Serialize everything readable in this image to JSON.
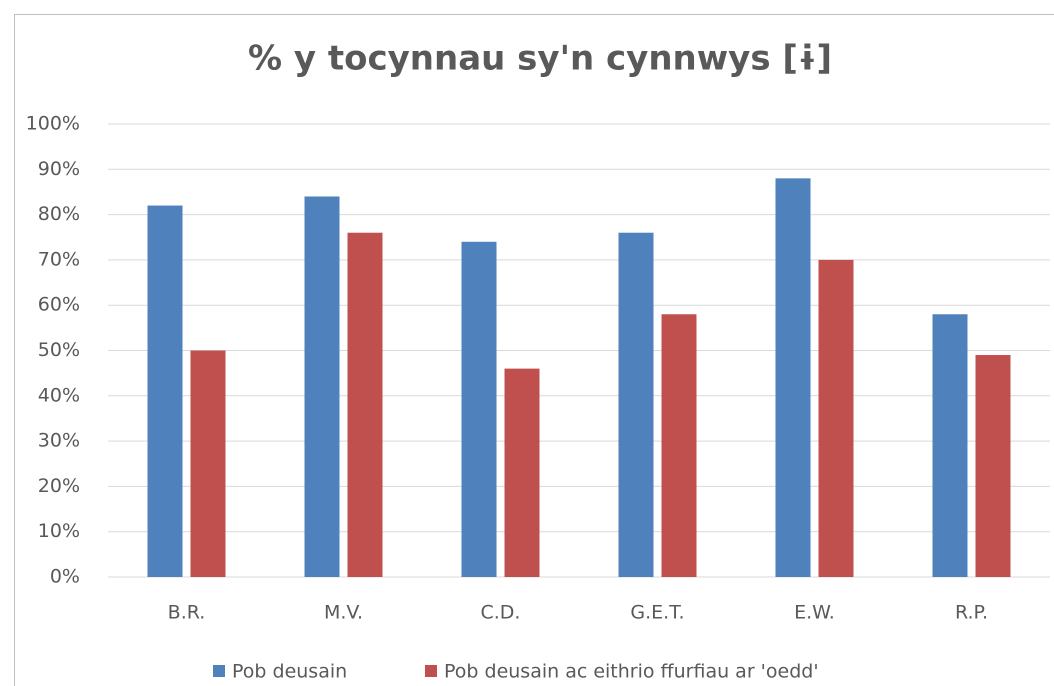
{
  "chart_data": {
    "type": "bar",
    "title": "% y tocynnau sy'n cynnwys [ɨ]",
    "categories": [
      "B.R.",
      "M.V.",
      "C.D.",
      "G.E.T.",
      "E.W.",
      "R.P."
    ],
    "series": [
      {
        "name": "Pob deusain",
        "color": "#4f81bd",
        "values": [
          82,
          84,
          74,
          76,
          88,
          58
        ]
      },
      {
        "name": "Pob deusain ac eithrio ffurfiau ar 'oedd'",
        "color": "#c0504d",
        "values": [
          50,
          76,
          46,
          58,
          70,
          49
        ]
      }
    ],
    "ylim": [
      0,
      100
    ],
    "yticks": [
      {
        "value": 0,
        "label": "0%"
      },
      {
        "value": 10,
        "label": "10%"
      },
      {
        "value": 20,
        "label": "20%"
      },
      {
        "value": 30,
        "label": "30%"
      },
      {
        "value": 40,
        "label": "40%"
      },
      {
        "value": 50,
        "label": "50%"
      },
      {
        "value": 60,
        "label": "60%"
      },
      {
        "value": 70,
        "label": "70%"
      },
      {
        "value": 80,
        "label": "80%"
      },
      {
        "value": 90,
        "label": "90%"
      },
      {
        "value": 100,
        "label": "100%"
      }
    ],
    "grid": true,
    "legend": "bottom"
  }
}
